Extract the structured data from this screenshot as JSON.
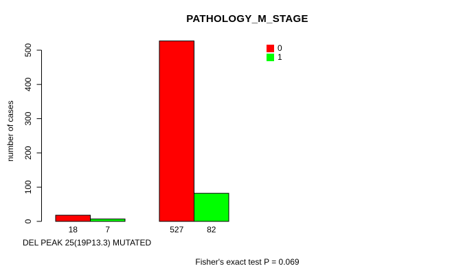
{
  "chart_data": {
    "type": "bar",
    "title": "PATHOLOGY_M_STAGE",
    "ylabel": "number of cases",
    "xlabel": "DEL PEAK 25(19P13.3) MUTATED",
    "annotation": "Fisher's exact test P = 0.069",
    "series": [
      {
        "name": "0",
        "color": "#FF0000",
        "values": [
          18,
          527
        ]
      },
      {
        "name": "1",
        "color": "#00FF00",
        "values": [
          7,
          82
        ]
      }
    ],
    "bar_value_labels": [
      "18",
      "7",
      "527",
      "82"
    ],
    "yticks": [
      0,
      100,
      200,
      300,
      400,
      500
    ],
    "ylim": [
      0,
      527
    ],
    "grid": false,
    "legend": {
      "position": "top-right",
      "entries": [
        {
          "label": "0",
          "color": "#FF0000"
        },
        {
          "label": "1",
          "color": "#00FF00"
        }
      ]
    },
    "bar_border_color": "#000000",
    "axis_color": "#000000",
    "text_color": "#000000",
    "background_color": "#FFFFFF"
  }
}
